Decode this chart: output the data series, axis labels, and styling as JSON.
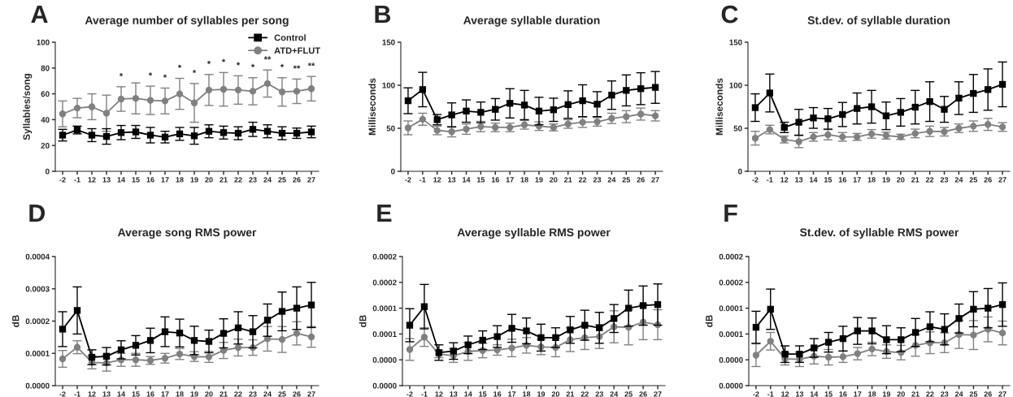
{
  "chart_data": [
    {
      "type": "line",
      "title": "Average number of syllables per song",
      "ylabel": "Syllables/song",
      "categories": [
        "-2",
        "-1",
        "12",
        "13",
        "14",
        "15",
        "16",
        "17",
        "18",
        "19",
        "20",
        "21",
        "22",
        "23",
        "24",
        "25",
        "26",
        "27"
      ],
      "ylim": [
        0,
        100
      ],
      "yticks": [
        0,
        20,
        40,
        60,
        80,
        100
      ],
      "grid": false,
      "legend": "top right",
      "annotations": [
        "A"
      ],
      "series": [
        {
          "name": "Control",
          "color": "#000000",
          "marker": "square",
          "values": [
            28,
            32,
            28,
            27,
            30,
            30.5,
            28,
            26.5,
            29,
            27.5,
            31,
            30,
            29.5,
            32.5,
            31,
            29.5,
            29.5,
            30.5
          ],
          "errors": [
            4.5,
            3,
            5,
            6,
            5.5,
            5,
            6,
            4.5,
            5,
            6.5,
            5,
            5,
            5,
            5.5,
            5,
            5,
            4,
            4.5
          ]
        },
        {
          "name": "ATD+FLUT",
          "color": "#808080",
          "marker": "circle",
          "values": [
            44.5,
            49,
            50,
            45,
            56,
            56.5,
            55,
            54.5,
            60,
            53,
            63,
            63.5,
            63,
            62,
            68,
            61.5,
            62,
            64
          ],
          "errors": [
            10,
            7.5,
            10,
            14,
            9.5,
            12,
            11,
            10,
            12,
            15,
            12,
            13,
            11,
            10.5,
            10.5,
            11,
            9.5,
            9.5
          ],
          "value_labels": [
            null,
            null,
            null,
            null,
            "*",
            null,
            "*",
            "*",
            "*",
            "*",
            "*",
            "*",
            "*",
            "*",
            "**",
            "*",
            "**",
            "**"
          ]
        }
      ]
    },
    {
      "type": "line",
      "title": "Average syllable duration",
      "ylabel": "Milliseconds",
      "categories": [
        "-2",
        "-1",
        "12",
        "13",
        "14",
        "15",
        "16",
        "17",
        "18",
        "19",
        "20",
        "21",
        "22",
        "23",
        "24",
        "25",
        "26",
        "27"
      ],
      "ylim": [
        0,
        150
      ],
      "yticks": [
        0,
        50,
        100,
        150
      ],
      "grid": false,
      "annotations": [
        "B"
      ],
      "series": [
        {
          "color": "#000000",
          "marker": "square",
          "values": [
            82,
            95,
            60,
            65.5,
            70,
            68.5,
            72,
            79,
            77,
            70,
            71.5,
            77.5,
            82,
            78,
            88.5,
            94,
            96,
            97.5
          ],
          "errors": [
            15,
            20,
            6,
            14,
            13,
            12,
            12.5,
            17,
            17,
            16,
            13.5,
            16,
            18.5,
            14.5,
            16.5,
            18,
            18.5,
            18.5
          ]
        },
        {
          "color": "#808080",
          "marker": "circle",
          "values": [
            50.5,
            60.5,
            47.5,
            46,
            49,
            52,
            51,
            51,
            54,
            52.5,
            51,
            55,
            57,
            57.5,
            61.5,
            63.5,
            66.5,
            64.5
          ],
          "errors": [
            8,
            7,
            5,
            6,
            6,
            6,
            5,
            5,
            5,
            5,
            4,
            5,
            6,
            5,
            6,
            7,
            7,
            6
          ]
        }
      ]
    },
    {
      "type": "line",
      "title": "St.dev. of syllable duration",
      "ylabel": "Milliseconds",
      "categories": [
        "-2",
        "-1",
        "12",
        "13",
        "14",
        "15",
        "16",
        "17",
        "18",
        "19",
        "20",
        "21",
        "22",
        "23",
        "24",
        "25",
        "26",
        "27"
      ],
      "ylim": [
        0,
        150
      ],
      "yticks": [
        0,
        50,
        100,
        150
      ],
      "grid": false,
      "annotations": [
        "C"
      ],
      "series": [
        {
          "color": "#000000",
          "marker": "square",
          "values": [
            74,
            91,
            51,
            57,
            62,
            61,
            66,
            73,
            75,
            64.5,
            68.5,
            74.5,
            81,
            72,
            85,
            90.5,
            95,
            101
          ],
          "errors": [
            16,
            22,
            6,
            15,
            12,
            12,
            14,
            18,
            19,
            16,
            16,
            19.5,
            23,
            15,
            19,
            22,
            24,
            26
          ]
        },
        {
          "color": "#808080",
          "marker": "circle",
          "values": [
            38.5,
            48.5,
            37,
            34.5,
            40,
            42.5,
            40,
            40,
            43.5,
            41.5,
            40,
            44,
            46.5,
            46,
            50,
            52.5,
            54.5,
            51.5
          ],
          "errors": [
            8,
            5,
            4,
            7,
            5,
            6,
            5,
            4,
            5,
            4,
            3,
            5,
            6,
            5,
            5,
            6,
            7,
            5
          ]
        }
      ]
    },
    {
      "type": "line",
      "title": "Average song RMS power",
      "ylabel": "dB",
      "categories": [
        "-2",
        "-1",
        "12",
        "13",
        "14",
        "15",
        "16",
        "17",
        "18",
        "19",
        "20",
        "21",
        "22",
        "23",
        "24",
        "25",
        "26",
        "27"
      ],
      "ylim": [
        0,
        0.0004
      ],
      "yticks": [
        {
          "value": 0,
          "label": "0.0000"
        },
        {
          "value": 0.0001,
          "label": "0.0001"
        },
        {
          "value": 0.0002,
          "label": "0.0002"
        },
        {
          "value": 0.0003,
          "label": "0.0003"
        },
        {
          "value": 0.0004,
          "label": "0.0004"
        }
      ],
      "grid": false,
      "annotations": [
        "D"
      ],
      "series": [
        {
          "color": "#000000",
          "marker": "square",
          "values": [
            0.000175,
            0.000233,
            8.8e-05,
            9.1e-05,
            0.000111,
            0.000125,
            0.00014,
            0.000167,
            0.000163,
            0.00014,
            0.000137,
            0.000162,
            0.000179,
            0.000167,
            0.000203,
            0.00023,
            0.00024,
            0.00025
          ],
          "errors": [
            5.4e-05,
            7.3e-05,
            2.3e-05,
            2.7e-05,
            2.8e-05,
            3e-05,
            3.8e-05,
            4.6e-05,
            4.3e-05,
            4.4e-05,
            3.5e-05,
            4.5e-05,
            5e-05,
            5e-05,
            5e-05,
            6e-05,
            6.6e-05,
            7e-05
          ]
        },
        {
          "color": "#808080",
          "marker": "circle",
          "values": [
            8.3e-05,
            0.000119,
            7.2e-05,
            7e-05,
            8e-05,
            8e-05,
            7.8e-05,
            8.5e-05,
            9.8e-05,
            9e-05,
            8.9e-05,
            0.000109,
            0.000118,
            0.000118,
            0.000145,
            0.000143,
            0.000162,
            0.000151
          ],
          "errors": [
            2.6e-05,
            2e-05,
            2e-05,
            2.5e-05,
            2e-05,
            2e-05,
            1.2e-05,
            1.5e-05,
            1.7e-05,
            1.5e-05,
            1.7e-05,
            2.5e-05,
            2.6e-05,
            2.4e-05,
            3.8e-05,
            4e-05,
            3.6e-05,
            3.2e-05
          ]
        }
      ]
    },
    {
      "type": "line",
      "title": "Average syllable RMS power",
      "ylabel": "dB",
      "categories": [
        "-2",
        "-1",
        "12",
        "13",
        "14",
        "15",
        "16",
        "17",
        "18",
        "19",
        "20",
        "21",
        "22",
        "23",
        "24",
        "25",
        "26",
        "27"
      ],
      "ylim": [
        0,
        0.00025
      ],
      "yticks": [
        {
          "value": 0,
          "label": "0.0000"
        },
        {
          "value": 5e-05,
          "label": "0.0000"
        },
        {
          "value": 0.0001,
          "label": "0.0001"
        },
        {
          "value": 0.00015,
          "label": "0.0001"
        },
        {
          "value": 0.0002,
          "label": "0.0002"
        },
        {
          "value": 0.00025,
          "label": "0.0002"
        }
      ],
      "grid": false,
      "annotations": [
        "E"
      ],
      "series": [
        {
          "color": "#000000",
          "marker": "square",
          "values": [
            0.000117,
            0.000153,
            6.4e-05,
            6.7e-05,
            7.9e-05,
            8.8e-05,
            9.5e-05,
            0.000111,
            0.000106,
            9.3e-05,
            9.3e-05,
            0.000108,
            0.000117,
            0.000112,
            0.00013,
            0.00015,
            0.000155,
            0.000157
          ],
          "errors": [
            3.2e-05,
            4.3e-05,
            1.5e-05,
            1.6e-05,
            1.7e-05,
            1.8e-05,
            2.1e-05,
            2.7e-05,
            2.5e-05,
            2.6e-05,
            1.9e-05,
            2.6e-05,
            2.9e-05,
            3e-05,
            2.7e-05,
            3.5e-05,
            3.8e-05,
            4e-05
          ]
        },
        {
          "color": "#808080",
          "marker": "circle",
          "values": [
            7e-05,
            9.4e-05,
            6.1e-05,
            5.8e-05,
            6.6e-05,
            6.8e-05,
            6.9e-05,
            7.3e-05,
            7.8e-05,
            7.5e-05,
            7.4e-05,
            8.9e-05,
            9.3e-05,
            9.5e-05,
            0.000114,
            0.000113,
            0.000123,
            0.000118
          ],
          "errors": [
            2.1e-05,
            1.8e-05,
            7e-06,
            1.3e-05,
            1.7e-05,
            1.4e-05,
            1e-05,
            1.7e-05,
            1.5e-05,
            1.5e-05,
            1.8e-05,
            2.3e-05,
            2.3e-05,
            2.3e-05,
            3.1e-05,
            3.4e-05,
            3.4e-05,
            2.9e-05
          ]
        }
      ]
    },
    {
      "type": "line",
      "title": "St.dev. of syllable RMS power",
      "ylabel": "dB",
      "categories": [
        "-2",
        "-1",
        "12",
        "13",
        "14",
        "15",
        "16",
        "17",
        "18",
        "19",
        "20",
        "21",
        "22",
        "23",
        "24",
        "25",
        "26",
        "27"
      ],
      "ylim": [
        0,
        0.00025
      ],
      "yticks": [
        {
          "value": 0,
          "label": "0.0000"
        },
        {
          "value": 5e-05,
          "label": "0.0000"
        },
        {
          "value": 0.0001,
          "label": "0.0001"
        },
        {
          "value": 0.00015,
          "label": "0.0001"
        },
        {
          "value": 0.0002,
          "label": "0.0002"
        },
        {
          "value": 0.00025,
          "label": "0.0002"
        }
      ],
      "grid": false,
      "annotations": [
        "F"
      ],
      "series": [
        {
          "color": "#000000",
          "marker": "square",
          "values": [
            0.000113,
            0.000148,
            6.1e-05,
            6.1e-05,
            7.3e-05,
            8.4e-05,
            9.1e-05,
            0.000106,
            0.000106,
            8.9e-05,
            8.9e-05,
            0.000103,
            0.000114,
            0.000109,
            0.00013,
            0.000148,
            0.00015,
            0.000157
          ],
          "errors": [
            3.1e-05,
            3.9e-05,
            1.6e-05,
            1.6e-05,
            1.8e-05,
            1.9e-05,
            2.4e-05,
            2.6e-05,
            2.5e-05,
            2.7e-05,
            2.3e-05,
            2.7e-05,
            2.9e-05,
            3e-05,
            2.8e-05,
            3.4e-05,
            3.8e-05,
            4.2e-05
          ]
        },
        {
          "color": "#808080",
          "marker": "circle",
          "values": [
            5.9e-05,
            8.6e-05,
            5.2e-05,
            5.1e-05,
            5.7e-05,
            5.5e-05,
            5.6e-05,
            6.2e-05,
            7.1e-05,
            6.6e-05,
            6.4e-05,
            7.8e-05,
            8.3e-05,
            8.3e-05,
            9.9e-05,
            9.8e-05,
            0.000109,
            0.000102
          ],
          "errors": [
            2.2e-05,
            1.7e-05,
            1.2e-05,
            1.4e-05,
            1.5e-05,
            1.5e-05,
            1.1e-05,
            1.2e-05,
            1.3e-05,
            1.3e-05,
            1.4e-05,
            2.1e-05,
            2.1e-05,
            1.9e-05,
            2.7e-05,
            2.8e-05,
            2.4e-05,
            2.3e-05
          ]
        }
      ]
    }
  ]
}
